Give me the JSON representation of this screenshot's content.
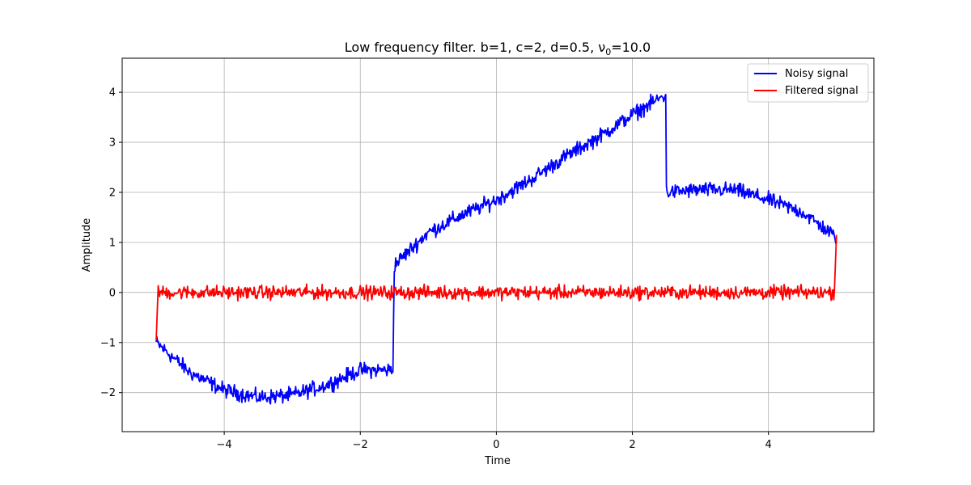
{
  "chart_data": {
    "type": "line",
    "title": "Low frequency filter. b=1, c=2, d=0.5, ν",
    "title_sub": "0",
    "title_tail": "=10.0",
    "xlabel": "Time",
    "ylabel": "Amplitude",
    "xlim": [
      -5.5,
      5.55
    ],
    "ylim": [
      -2.78,
      4.68
    ],
    "xticks": [
      -4,
      -2,
      0,
      2,
      4
    ],
    "xtick_labels": [
      "−4",
      "−2",
      "0",
      "2",
      "4"
    ],
    "yticks": [
      -2,
      -1,
      0,
      1,
      2,
      3,
      4
    ],
    "ytick_labels": [
      "−2",
      "−1",
      "0",
      "1",
      "2",
      "3",
      "4"
    ],
    "grid": true,
    "legend_position": "top-right",
    "x_range": [
      -5,
      5
    ],
    "series": [
      {
        "name": "Noisy signal",
        "color": "#0000ff",
        "x": [
          -5.0,
          -4.5,
          -4.0,
          -3.5,
          -3.0,
          -2.5,
          -2.0,
          -1.52,
          -1.5,
          -1.0,
          -0.5,
          0.0,
          0.5,
          1.0,
          1.5,
          2.0,
          2.49,
          2.5,
          3.0,
          3.5,
          4.0,
          4.5,
          5.0
        ],
        "y": [
          -1.0,
          -1.6,
          -1.95,
          -2.1,
          -2.05,
          -1.85,
          -1.55,
          -1.55,
          0.55,
          1.2,
          1.55,
          1.85,
          2.25,
          2.7,
          3.1,
          3.55,
          3.95,
          2.0,
          2.05,
          2.05,
          1.85,
          1.6,
          1.1
        ],
        "noise_amplitude": 0.22
      },
      {
        "name": "Filtered signal",
        "color": "#ff0000",
        "x": [
          -5.0,
          -4.95,
          5.0
        ],
        "y": [
          -0.95,
          0.0,
          1.15
        ],
        "baseline": 0.0,
        "noise_amplitude": 0.2
      }
    ]
  }
}
